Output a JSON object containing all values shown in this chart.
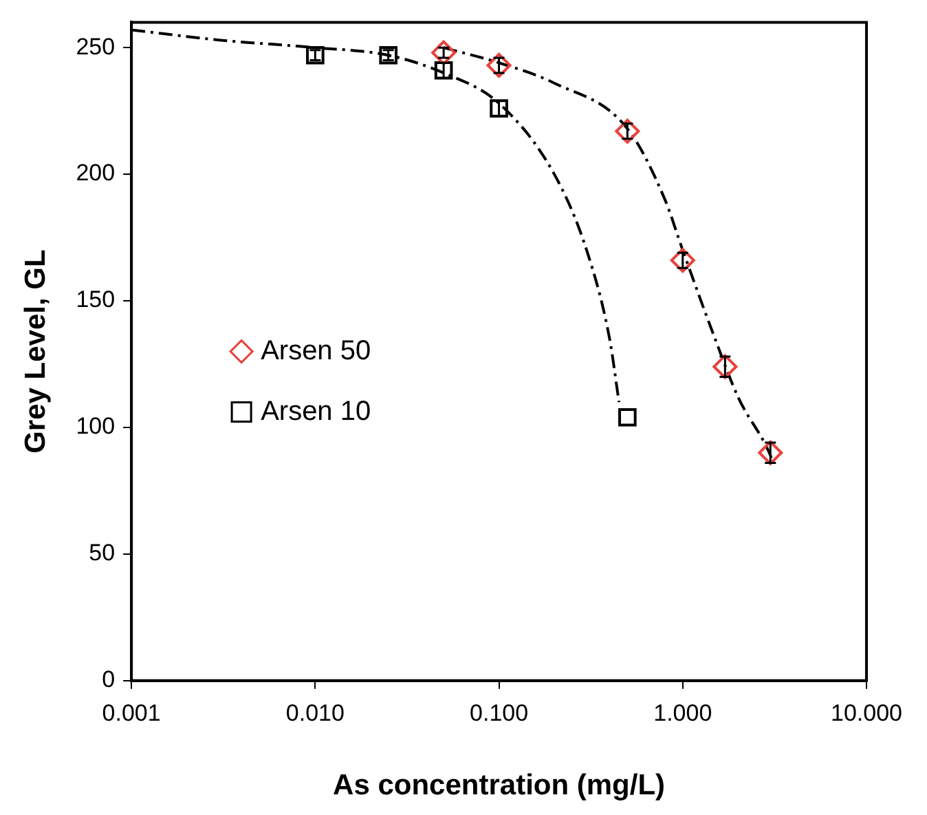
{
  "chart_data": {
    "type": "scatter",
    "xlabel": "As concentration (mg/L)",
    "ylabel": "Grey Level, GL",
    "log": "x",
    "xlim": [
      0.001,
      10
    ],
    "xticks": [
      {
        "value": 0.001,
        "label": "0.001"
      },
      {
        "value": 0.01,
        "label": "0.010"
      },
      {
        "value": 0.1,
        "label": "0.100"
      },
      {
        "value": 1,
        "label": "1.000"
      },
      {
        "value": 10,
        "label": "10.000"
      }
    ],
    "ylim": [
      0,
      260
    ],
    "yticks": [
      0,
      50,
      100,
      150,
      200,
      250
    ],
    "grid": false,
    "legend": "left",
    "series": [
      {
        "name": "Arsen 50",
        "color": "#e8413c",
        "marker": "diamond",
        "x": [
          0.05,
          0.1,
          0.5,
          1,
          1.7,
          3
        ],
        "values": [
          248,
          243,
          217,
          166,
          124,
          90
        ],
        "errors": [
          2,
          3,
          3,
          3,
          4,
          4
        ]
      },
      {
        "name": "Arsen 10",
        "color": "#000000",
        "marker": "square",
        "x": [
          0.01,
          0.025,
          0.05,
          0.1,
          0.5
        ],
        "values": [
          247,
          247,
          241,
          226,
          104
        ],
        "errors": [
          2,
          2,
          3,
          3,
          null
        ]
      },
      {
        "type": "line",
        "color": "#000000",
        "marker": "none",
        "line_style": "dashed",
        "x": [
          0.001,
          0.003,
          0.01,
          0.025,
          0.05,
          0.1,
          0.2,
          0.3,
          0.4,
          0.45
        ],
        "values": [
          257,
          253,
          250,
          247,
          240,
          228,
          200,
          170,
          135,
          110
        ]
      },
      {
        "type": "line",
        "color": "#000000",
        "marker": "none",
        "line_style": "dashed",
        "x": [
          0.05,
          0.1,
          0.2,
          0.5,
          0.8,
          1,
          1.5,
          2,
          3,
          3.1
        ],
        "values": [
          250,
          244,
          236,
          218,
          190,
          170,
          135,
          112,
          89,
          86
        ]
      }
    ]
  }
}
